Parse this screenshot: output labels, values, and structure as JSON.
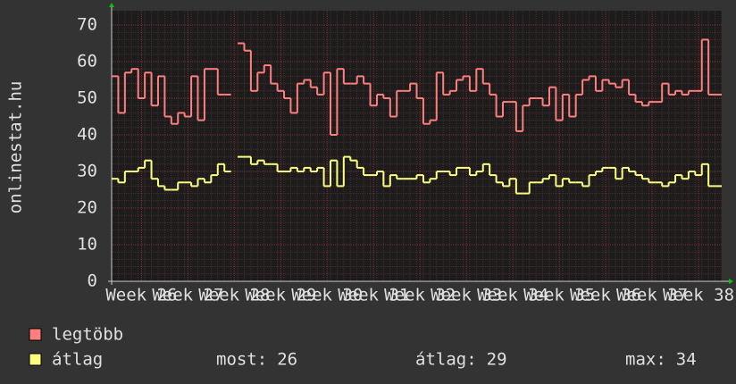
{
  "chart_data": {
    "type": "line",
    "step": true,
    "ylabel": "onlinestat.hu",
    "x": [
      0,
      1,
      2,
      3,
      4,
      5,
      6,
      7,
      8,
      9,
      10,
      11,
      12,
      13,
      14,
      15,
      16,
      17,
      18,
      19,
      20,
      21,
      22,
      23,
      24,
      25,
      26,
      27,
      28,
      29,
      30,
      31,
      32,
      33,
      34,
      35,
      36,
      37,
      38,
      39,
      40,
      41,
      42,
      43,
      44,
      45,
      46,
      47,
      48,
      49,
      50,
      51,
      52,
      53,
      54,
      55,
      56,
      57,
      58,
      59,
      60,
      61,
      62,
      63,
      64,
      65,
      66,
      67,
      68,
      69,
      70,
      71,
      72,
      73,
      74,
      75,
      76,
      77,
      78,
      79,
      80,
      81,
      82,
      83,
      84,
      85,
      86,
      87,
      88,
      89,
      90,
      91
    ],
    "xlim": [
      0,
      92
    ],
    "xticks": [
      {
        "value": 4.5,
        "label": "Week 26"
      },
      {
        "value": 11.5,
        "label": "Week 27"
      },
      {
        "value": 18.5,
        "label": "Week 28"
      },
      {
        "value": 25.5,
        "label": "Week 29"
      },
      {
        "value": 32.5,
        "label": "Week 30"
      },
      {
        "value": 39.5,
        "label": "Week 31"
      },
      {
        "value": 46.5,
        "label": "Week 32"
      },
      {
        "value": 53.5,
        "label": "Week 33"
      },
      {
        "value": 60.5,
        "label": "Week 34"
      },
      {
        "value": 67.5,
        "label": "Week 35"
      },
      {
        "value": 74.5,
        "label": "Week 36"
      },
      {
        "value": 81.5,
        "label": "Week 37"
      },
      {
        "value": 88.5,
        "label": "Week 38"
      }
    ],
    "ylim": [
      0,
      70
    ],
    "yticks": [
      0,
      10,
      20,
      30,
      40,
      50,
      60,
      70
    ],
    "grid": true,
    "series": [
      {
        "name": "legtöbb",
        "color": "#ff7f7f",
        "values": [
          56,
          46,
          57,
          58,
          50,
          57,
          48,
          56,
          45,
          43,
          46,
          45,
          56,
          44,
          58,
          58,
          51,
          51,
          null,
          65,
          63,
          52,
          57,
          59,
          54,
          52,
          50,
          46,
          54,
          55,
          53,
          51,
          57,
          40,
          58,
          54,
          54,
          56,
          54,
          48,
          51,
          50,
          45,
          52,
          52,
          54,
          50,
          43,
          44,
          57,
          51,
          52,
          55,
          56,
          52,
          58,
          54,
          51,
          45,
          49,
          49,
          41,
          48,
          50,
          50,
          48,
          53,
          44,
          51,
          45,
          51,
          55,
          56,
          52,
          55,
          54,
          53,
          55,
          51,
          49,
          48,
          49,
          49,
          54,
          51,
          52,
          51,
          52,
          52,
          66,
          51,
          51
        ]
      },
      {
        "name": "átlag",
        "color": "#ffff7f",
        "values": [
          28,
          27,
          30,
          30,
          31,
          33,
          28,
          26,
          25,
          25,
          27,
          27,
          26,
          28,
          27,
          29,
          32,
          30,
          null,
          34,
          34,
          32,
          33,
          32,
          32,
          30,
          30,
          31,
          30,
          31,
          30,
          31,
          26,
          33,
          26,
          34,
          33,
          31,
          29,
          29,
          30,
          26,
          29,
          28,
          28,
          28,
          29,
          27,
          28,
          30,
          30,
          29,
          31,
          31,
          29,
          30,
          32,
          29,
          27,
          26,
          28,
          24,
          24,
          27,
          27,
          28,
          29,
          26,
          28,
          27,
          27,
          26,
          29,
          30,
          31,
          31,
          28,
          31,
          30,
          29,
          28,
          27,
          27,
          26,
          27,
          29,
          28,
          30,
          29,
          32,
          26,
          26
        ],
        "stats": [
          {
            "label": "most:",
            "value": 26
          },
          {
            "label": "átlag:",
            "value": 29
          },
          {
            "label": "max:",
            "value": 34
          }
        ]
      }
    ]
  }
}
